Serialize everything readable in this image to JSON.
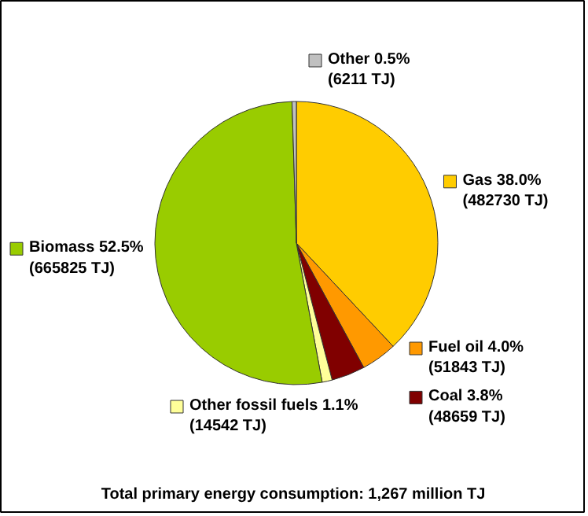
{
  "chart_data": {
    "type": "pie",
    "title": "Total primary energy consumption: 1,267 million TJ",
    "categories": [
      "Gas",
      "Fuel oil",
      "Coal",
      "Other fossil fuels",
      "Biomass",
      "Other"
    ],
    "values": [
      482730,
      51843,
      48659,
      14542,
      665825,
      6211
    ],
    "colors": [
      "#ffcc00",
      "#ff9900",
      "#800000",
      "#ffff99",
      "#99cc00",
      "#c0c0c0"
    ],
    "value_labels": [
      "38.0%\n(482730 TJ)",
      "4.0%\n(51843 TJ)",
      "3.8%\n(48659 TJ)",
      "1.1%\n(14542 TJ)",
      "52.5%\n(665825 TJ)",
      "0.5%\n(6211 TJ)"
    ],
    "legend": "bottom left"
  }
}
